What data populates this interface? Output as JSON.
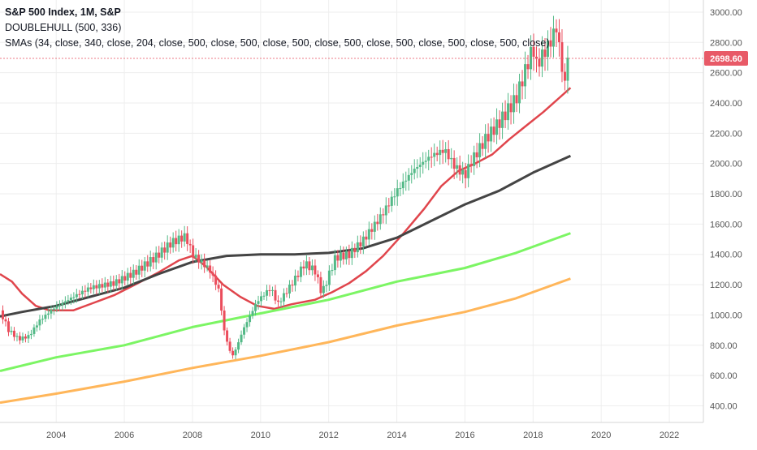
{
  "legend": {
    "title": "S&P 500 Index, 1M, S&P",
    "line1": "DOUBLEHULL (500, 336)",
    "line2": "SMAs (34, close, 340, close, 204, close, 500, close, 500, close, 500, close, 500, close, 500, close, 500, close, 500, close)"
  },
  "price_label": "2698.60",
  "colors": {
    "up": "#53b987",
    "down": "#eb4d5c",
    "last_price": "#e85a67",
    "hull": "#e0454c",
    "sma_black": "#444444",
    "sma_green": "#7cf564",
    "sma_orange": "#ffb65a",
    "grid": "#eeeeee",
    "axis_text": "#555555"
  },
  "chart_data": {
    "type": "candlestick",
    "title": "S&P 500 Index, 1M, S&P",
    "x_ticks": [
      "2004",
      "2006",
      "2008",
      "2010",
      "2012",
      "2014",
      "2016",
      "2018",
      "2020",
      "2022"
    ],
    "y_ticks": [
      "3000.00",
      "2800.00",
      "2600.00",
      "2400.00",
      "2200.00",
      "2000.00",
      "1800.00",
      "1600.00",
      "1400.00",
      "1200.00",
      "1000.00",
      "800.00",
      "600.00",
      "400.00"
    ],
    "xlim": [
      2002.35,
      2023.0
    ],
    "ylim": [
      290,
      3080
    ],
    "last_price": 2698.6,
    "price_anchors": [
      [
        2002.35,
        1030
      ],
      [
        2002.6,
        900
      ],
      [
        2002.9,
        840
      ],
      [
        2003.2,
        860
      ],
      [
        2003.5,
        960
      ],
      [
        2003.9,
        1040
      ],
      [
        2004.5,
        1120
      ],
      [
        2005.0,
        1180
      ],
      [
        2005.7,
        1210
      ],
      [
        2006.3,
        1280
      ],
      [
        2006.9,
        1380
      ],
      [
        2007.4,
        1480
      ],
      [
        2007.8,
        1520
      ],
      [
        2008.0,
        1400
      ],
      [
        2008.5,
        1300
      ],
      [
        2008.8,
        1150
      ],
      [
        2008.9,
        920
      ],
      [
        2009.1,
        760
      ],
      [
        2009.2,
        730
      ],
      [
        2009.5,
        910
      ],
      [
        2009.9,
        1090
      ],
      [
        2010.3,
        1180
      ],
      [
        2010.5,
        1070
      ],
      [
        2010.9,
        1200
      ],
      [
        2011.3,
        1340
      ],
      [
        2011.6,
        1290
      ],
      [
        2011.8,
        1140
      ],
      [
        2012.2,
        1380
      ],
      [
        2012.6,
        1400
      ],
      [
        2013.0,
        1490
      ],
      [
        2013.5,
        1640
      ],
      [
        2014.0,
        1820
      ],
      [
        2014.5,
        1960
      ],
      [
        2015.0,
        2050
      ],
      [
        2015.4,
        2090
      ],
      [
        2015.7,
        1980
      ],
      [
        2016.0,
        1920
      ],
      [
        2016.2,
        2020
      ],
      [
        2016.6,
        2160
      ],
      [
        2017.0,
        2270
      ],
      [
        2017.5,
        2430
      ],
      [
        2018.0,
        2770
      ],
      [
        2018.1,
        2650
      ],
      [
        2018.5,
        2800
      ],
      [
        2018.7,
        2910
      ],
      [
        2018.8,
        2700
      ],
      [
        2018.95,
        2500
      ],
      [
        2019.05,
        2698.6
      ]
    ],
    "series": [
      {
        "name": "DOUBLEHULL",
        "points": [
          [
            2002.35,
            1270
          ],
          [
            2002.7,
            1220
          ],
          [
            2003.0,
            1140
          ],
          [
            2003.4,
            1060
          ],
          [
            2003.8,
            1030
          ],
          [
            2004.5,
            1030
          ],
          [
            2005.1,
            1080
          ],
          [
            2005.7,
            1130
          ],
          [
            2006.4,
            1210
          ],
          [
            2007.0,
            1280
          ],
          [
            2007.6,
            1360
          ],
          [
            2008.0,
            1390
          ],
          [
            2008.4,
            1320
          ],
          [
            2008.9,
            1200
          ],
          [
            2009.4,
            1120
          ],
          [
            2009.9,
            1060
          ],
          [
            2010.4,
            1040
          ],
          [
            2010.9,
            1070
          ],
          [
            2011.6,
            1100
          ],
          [
            2012.1,
            1150
          ],
          [
            2012.6,
            1210
          ],
          [
            2013.1,
            1290
          ],
          [
            2013.6,
            1390
          ],
          [
            2014.2,
            1540
          ],
          [
            2014.8,
            1700
          ],
          [
            2015.3,
            1850
          ],
          [
            2015.8,
            1950
          ],
          [
            2016.3,
            2000
          ],
          [
            2016.8,
            2060
          ],
          [
            2017.3,
            2160
          ],
          [
            2017.8,
            2250
          ],
          [
            2018.3,
            2340
          ],
          [
            2018.8,
            2440
          ],
          [
            2019.1,
            2500
          ]
        ]
      },
      {
        "name": "SMA 34",
        "points": [
          [
            2002.35,
            990
          ],
          [
            2003.0,
            1020
          ],
          [
            2004.0,
            1060
          ],
          [
            2005.0,
            1120
          ],
          [
            2006.0,
            1180
          ],
          [
            2007.0,
            1270
          ],
          [
            2008.0,
            1350
          ],
          [
            2009.0,
            1390
          ],
          [
            2010.0,
            1400
          ],
          [
            2011.0,
            1400
          ],
          [
            2012.0,
            1410
          ],
          [
            2013.0,
            1440
          ],
          [
            2014.0,
            1510
          ],
          [
            2015.0,
            1620
          ],
          [
            2016.0,
            1730
          ],
          [
            2017.0,
            1820
          ],
          [
            2018.0,
            1940
          ],
          [
            2019.1,
            2050
          ]
        ]
      },
      {
        "name": "SMA 340",
        "points": [
          [
            2002.35,
            630
          ],
          [
            2004.0,
            720
          ],
          [
            2006.0,
            800
          ],
          [
            2008.0,
            920
          ],
          [
            2010.0,
            1010
          ],
          [
            2012.0,
            1100
          ],
          [
            2014.0,
            1220
          ],
          [
            2016.0,
            1310
          ],
          [
            2017.5,
            1410
          ],
          [
            2019.1,
            1540
          ]
        ]
      },
      {
        "name": "SMA 204",
        "points": [
          [
            2002.35,
            420
          ],
          [
            2004.0,
            480
          ],
          [
            2006.0,
            560
          ],
          [
            2008.0,
            650
          ],
          [
            2010.0,
            730
          ],
          [
            2012.0,
            820
          ],
          [
            2014.0,
            930
          ],
          [
            2016.0,
            1020
          ],
          [
            2017.5,
            1110
          ],
          [
            2019.1,
            1240
          ]
        ]
      }
    ],
    "grid": true
  }
}
